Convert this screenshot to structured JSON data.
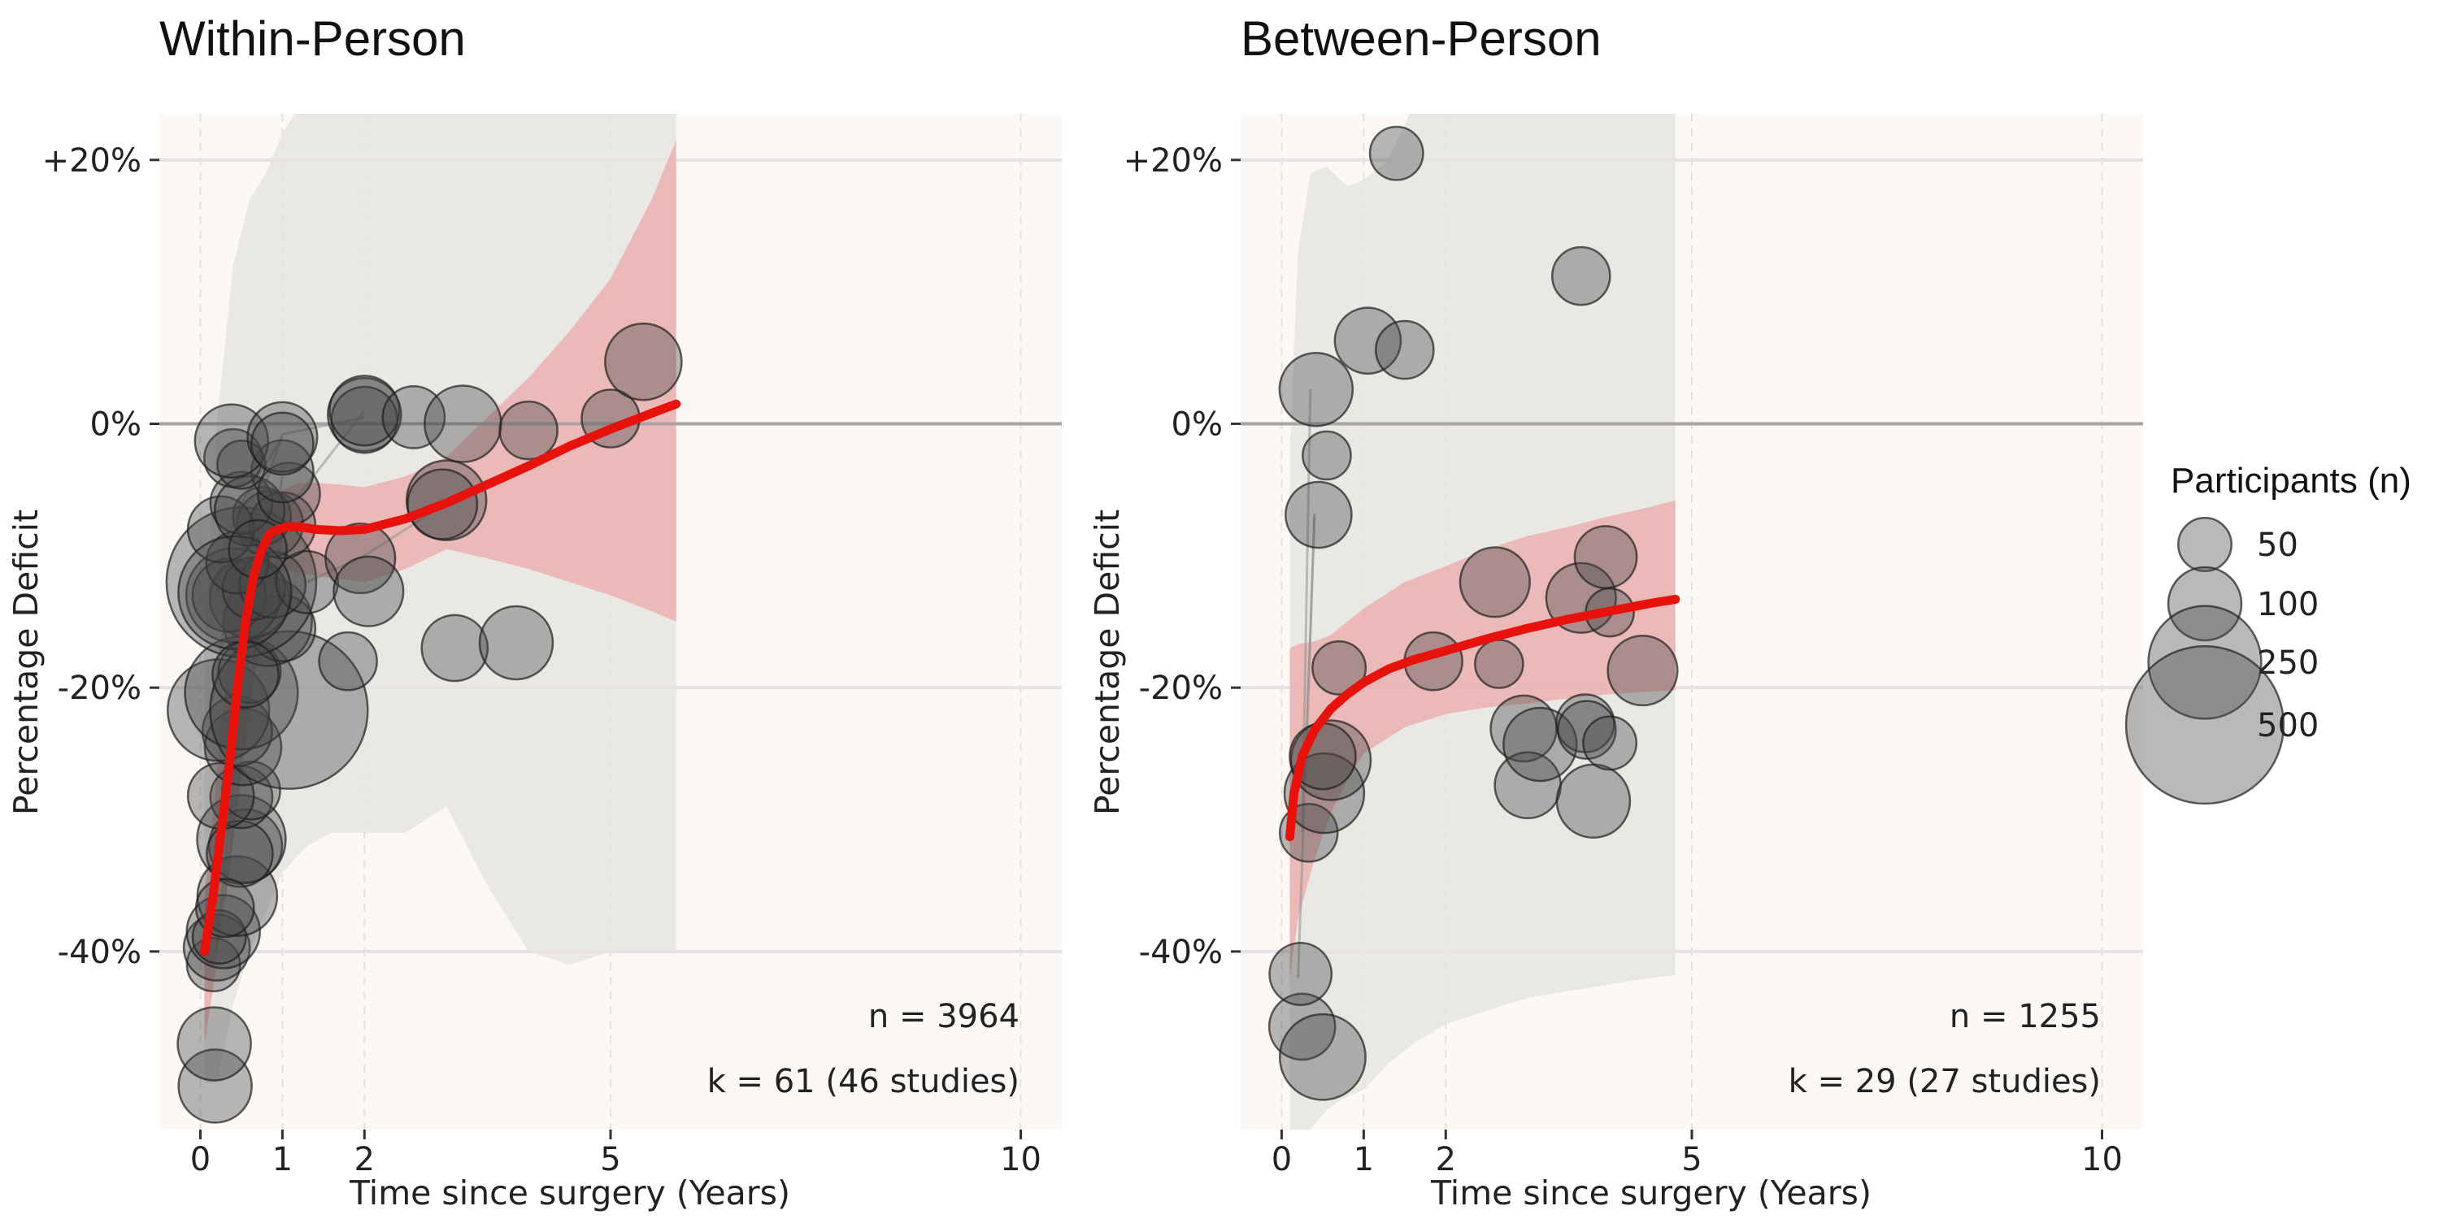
{
  "chart_data": [
    {
      "type": "scatter",
      "title": "Within-Person",
      "xlabel": "Time since surgery (Years)",
      "ylabel": "Percentage Deficit",
      "xlim": [
        -0.5,
        10.5
      ],
      "ylim": [
        -53.5,
        23.5
      ],
      "x_ticks": [
        0,
        1,
        2,
        5,
        10
      ],
      "y_ticks": [
        20,
        0,
        -20,
        -40
      ],
      "y_tick_labels": [
        "+20%",
        "0%",
        "-20%",
        "-40%"
      ],
      "reference_line_y": 0,
      "annotations": [
        "n = 3964",
        "k = 61 (46 studies)"
      ],
      "fit_line": {
        "color": "#e8120c",
        "x": [
          0.05,
          0.15,
          0.25,
          0.35,
          0.45,
          0.55,
          0.65,
          0.75,
          0.85,
          0.95,
          1.05,
          1.2,
          1.4,
          1.7,
          2.0,
          2.5,
          3.0,
          3.5,
          4.0,
          4.5,
          5.0,
          5.5,
          5.8
        ],
        "y": [
          -40,
          -36,
          -31,
          -26,
          -20,
          -15,
          -11.5,
          -9.5,
          -8.3,
          -8.0,
          -7.8,
          -7.8,
          -8.0,
          -8.1,
          -8.0,
          -7.2,
          -6.0,
          -4.6,
          -3.2,
          -1.7,
          -0.4,
          0.8,
          1.5
        ]
      },
      "ci_band": {
        "color": "#eb9f9f",
        "x": [
          0.05,
          0.15,
          0.25,
          0.35,
          0.5,
          0.7,
          0.9,
          1.0,
          1.2,
          1.5,
          2.0,
          2.5,
          3.0,
          3.5,
          4.0,
          4.5,
          5.0,
          5.5,
          5.8
        ],
        "upper": [
          -36,
          -30,
          -23,
          -17,
          -11,
          -7.3,
          -5.5,
          -5.0,
          -4.5,
          -4.5,
          -4.8,
          -4.0,
          -2.5,
          0.5,
          3.5,
          7.0,
          11.0,
          17.0,
          21.5
        ],
        "lower": [
          -47,
          -43,
          -38,
          -34,
          -27,
          -17,
          -12,
          -11,
          -11.3,
          -11.6,
          -12.0,
          -11.0,
          -9.5,
          -10.2,
          -11.0,
          -12.0,
          -13.0,
          -14.2,
          -15.0
        ]
      },
      "pred_band": {
        "color": "#e6e3e1",
        "x": [
          0.05,
          0.2,
          0.4,
          0.6,
          0.8,
          1.0,
          1.3,
          1.6,
          2.0,
          2.5,
          3.0,
          3.5,
          4.0,
          4.5,
          5.0,
          5.5,
          5.8
        ],
        "upper": [
          -17,
          0,
          12,
          17,
          19,
          22,
          25,
          27,
          28,
          29,
          30,
          30,
          30,
          30,
          30,
          30,
          30
        ],
        "lower": [
          -50,
          -50,
          -44,
          -40,
          -37,
          -34,
          -32,
          -31,
          -31,
          -31,
          -29,
          -35,
          -40,
          -41,
          -40,
          -40,
          -40
        ]
      },
      "connector_paths": [
        [
          [
            0.2,
            -13
          ],
          [
            0.3,
            -9
          ],
          [
            0.5,
            -6
          ],
          [
            0.8,
            -3
          ],
          [
            1.0,
            -1
          ]
        ],
        [
          [
            0.15,
            -21
          ],
          [
            0.35,
            -13
          ],
          [
            0.6,
            -8
          ],
          [
            1.0,
            -0.8
          ],
          [
            2.0,
            0.5
          ]
        ],
        [
          [
            0.35,
            -31
          ],
          [
            0.5,
            -22
          ],
          [
            0.7,
            -12
          ],
          [
            1.0,
            -7
          ],
          [
            2.0,
            1.0
          ]
        ],
        [
          [
            0.25,
            -28
          ],
          [
            0.5,
            -18
          ],
          [
            0.8,
            -11
          ],
          [
            1.0,
            -8
          ]
        ],
        [
          [
            0.3,
            -36
          ],
          [
            0.5,
            -25
          ],
          [
            0.7,
            -15
          ],
          [
            1.0,
            -4
          ]
        ],
        [
          [
            0.2,
            -40
          ],
          [
            0.45,
            -24
          ],
          [
            0.85,
            -14
          ],
          [
            1.0,
            -8
          ]
        ],
        [
          [
            1.3,
            -12
          ],
          [
            2.0,
            -10
          ],
          [
            3.0,
            -6
          ]
        ]
      ],
      "points": [
        {
          "x": 0.18,
          "y": -50.2,
          "n": 100
        },
        {
          "x": 0.17,
          "y": -47.0,
          "n": 100
        },
        {
          "x": 0.16,
          "y": -41.0,
          "n": 50
        },
        {
          "x": 0.2,
          "y": -39.7,
          "n": 80
        },
        {
          "x": 0.28,
          "y": -38.5,
          "n": 100
        },
        {
          "x": 0.23,
          "y": -38.9,
          "n": 50
        },
        {
          "x": 0.45,
          "y": -35.8,
          "n": 120
        },
        {
          "x": 0.55,
          "y": -32.0,
          "n": 100
        },
        {
          "x": 0.5,
          "y": -31.5,
          "n": 150
        },
        {
          "x": 0.48,
          "y": -32.6,
          "n": 80
        },
        {
          "x": 0.5,
          "y": -28.3,
          "n": 70
        },
        {
          "x": 0.62,
          "y": -27.8,
          "n": 60
        },
        {
          "x": 0.25,
          "y": -28.2,
          "n": 80
        },
        {
          "x": 0.52,
          "y": -24.5,
          "n": 110
        },
        {
          "x": 0.45,
          "y": -23.3,
          "n": 90
        },
        {
          "x": 0.22,
          "y": -21.7,
          "n": 200
        },
        {
          "x": 0.5,
          "y": -20.4,
          "n": 250
        },
        {
          "x": 0.6,
          "y": -18.8,
          "n": 70
        },
        {
          "x": 1.08,
          "y": -21.7,
          "n": 500
        },
        {
          "x": 0.82,
          "y": -15.0,
          "n": 150
        },
        {
          "x": 1.0,
          "y": -15.5,
          "n": 80
        },
        {
          "x": 0.6,
          "y": -13.2,
          "n": 120
        },
        {
          "x": 0.4,
          "y": -13.0,
          "n": 170
        },
        {
          "x": 0.35,
          "y": -13.0,
          "n": 100
        },
        {
          "x": 0.5,
          "y": -12.0,
          "n": 450
        },
        {
          "x": 0.65,
          "y": -12.5,
          "n": 70
        },
        {
          "x": 0.88,
          "y": -12.2,
          "n": 80
        },
        {
          "x": 1.3,
          "y": -12.0,
          "n": 70
        },
        {
          "x": 0.45,
          "y": -10.5,
          "n": 70
        },
        {
          "x": 0.85,
          "y": -7.6,
          "n": 80
        },
        {
          "x": 0.75,
          "y": -7.0,
          "n": 60
        },
        {
          "x": 1.0,
          "y": -7.7,
          "n": 80
        },
        {
          "x": 0.25,
          "y": -8.0,
          "n": 80
        },
        {
          "x": 0.5,
          "y": -6.0,
          "n": 70
        },
        {
          "x": 0.6,
          "y": -6.6,
          "n": 90
        },
        {
          "x": 1.08,
          "y": -5.3,
          "n": 70
        },
        {
          "x": 1.0,
          "y": -3.6,
          "n": 70
        },
        {
          "x": 0.4,
          "y": -2.6,
          "n": 60
        },
        {
          "x": 0.5,
          "y": -3.1,
          "n": 40
        },
        {
          "x": 0.38,
          "y": -1.3,
          "n": 100
        },
        {
          "x": 1.0,
          "y": -1.0,
          "n": 90
        },
        {
          "x": 1.0,
          "y": -1.5,
          "n": 70
        },
        {
          "x": 2.0,
          "y": 0.7,
          "n": 100
        },
        {
          "x": 2.0,
          "y": 0.3,
          "n": 80
        },
        {
          "x": 2.0,
          "y": 1.0,
          "n": 90
        },
        {
          "x": 2.6,
          "y": 0.5,
          "n": 70
        },
        {
          "x": 3.2,
          "y": 0.0,
          "n": 110
        },
        {
          "x": 3.0,
          "y": -5.8,
          "n": 120
        },
        {
          "x": 2.95,
          "y": -6.1,
          "n": 90
        },
        {
          "x": 1.95,
          "y": -10.2,
          "n": 90
        },
        {
          "x": 2.05,
          "y": -12.7,
          "n": 90
        },
        {
          "x": 1.8,
          "y": -18.0,
          "n": 60
        },
        {
          "x": 3.1,
          "y": -17.0,
          "n": 80
        },
        {
          "x": 3.85,
          "y": -16.6,
          "n": 100
        },
        {
          "x": 4.0,
          "y": -0.5,
          "n": 60
        },
        {
          "x": 5.0,
          "y": 0.4,
          "n": 60
        },
        {
          "x": 5.4,
          "y": 4.7,
          "n": 110
        },
        {
          "x": 0.42,
          "y": -12.8,
          "n": 250
        },
        {
          "x": 0.55,
          "y": -19.0,
          "n": 80
        },
        {
          "x": 0.3,
          "y": -36.7,
          "n": 60
        },
        {
          "x": 0.7,
          "y": -9.5,
          "n": 60
        }
      ]
    },
    {
      "type": "scatter",
      "title": "Between-Person",
      "xlabel": "Time since surgery (Years)",
      "ylabel": "Percentage Deficit",
      "xlim": [
        -0.5,
        10.5
      ],
      "ylim": [
        -53.5,
        23.5
      ],
      "x_ticks": [
        0,
        1,
        2,
        5,
        10
      ],
      "y_ticks": [
        20,
        0,
        -20,
        -40
      ],
      "y_tick_labels": [
        "+20%",
        "0%",
        "-20%",
        "-40%"
      ],
      "reference_line_y": 0,
      "annotations": [
        "n = 1255",
        "k = 29 (27 studies)"
      ],
      "fit_line": {
        "color": "#e8120c",
        "x": [
          0.1,
          0.15,
          0.25,
          0.4,
          0.6,
          0.8,
          1.0,
          1.3,
          1.6,
          2.0,
          2.5,
          3.0,
          3.5,
          4.0,
          4.5,
          4.8
        ],
        "y": [
          -31.3,
          -28.0,
          -25.2,
          -23.2,
          -21.6,
          -20.5,
          -19.6,
          -18.6,
          -17.9,
          -17.2,
          -16.3,
          -15.5,
          -14.8,
          -14.2,
          -13.6,
          -13.3
        ]
      },
      "ci_band": {
        "color": "#eb9f9f",
        "x": [
          0.1,
          0.2,
          0.4,
          0.6,
          0.8,
          1.0,
          1.5,
          2.0,
          2.5,
          3.0,
          3.5,
          4.0,
          4.5,
          4.8
        ],
        "upper": [
          -17.0,
          -16.7,
          -16.5,
          -16.0,
          -15.0,
          -14.0,
          -12.0,
          -10.8,
          -9.5,
          -8.5,
          -7.8,
          -7.0,
          -6.3,
          -5.8
        ],
        "lower": [
          -42.0,
          -37.5,
          -33.0,
          -29.5,
          -27.0,
          -25.0,
          -23.0,
          -22.0,
          -21.5,
          -21.2,
          -20.8,
          -20.5,
          -20.3,
          -20.2
        ]
      },
      "pred_band": {
        "color": "#e6e3e1",
        "x": [
          0.1,
          0.2,
          0.35,
          0.55,
          0.8,
          1.0,
          1.3,
          1.6,
          2.0,
          2.5,
          3.0,
          3.5,
          4.0,
          4.5,
          4.8
        ],
        "upper": [
          -2.0,
          13.0,
          19.0,
          19.5,
          18.0,
          18.5,
          20.0,
          24.0,
          27.0,
          30.0,
          30.0,
          30.0,
          30.0,
          30.0,
          30.0
        ],
        "lower": [
          -53.5,
          -53.5,
          -53.5,
          -52.0,
          -51.0,
          -50.5,
          -48.5,
          -47.0,
          -45.5,
          -44.5,
          -43.5,
          -43.0,
          -42.5,
          -42.0,
          -41.8
        ]
      },
      "connector_paths": [
        [
          [
            0.25,
            -31
          ],
          [
            0.35,
            2.6
          ]
        ],
        [
          [
            0.2,
            -42
          ],
          [
            0.4,
            -7
          ]
        ],
        [
          [
            0.3,
            -25
          ],
          [
            0.4,
            -6.8
          ]
        ]
      ],
      "points": [
        {
          "x": 0.25,
          "y": -45.7,
          "n": 80
        },
        {
          "x": 0.5,
          "y": -48.0,
          "n": 140
        },
        {
          "x": 0.23,
          "y": -41.7,
          "n": 70
        },
        {
          "x": 0.33,
          "y": -31.0,
          "n": 60
        },
        {
          "x": 0.52,
          "y": -28.0,
          "n": 120
        },
        {
          "x": 0.6,
          "y": -25.5,
          "n": 120
        },
        {
          "x": 0.5,
          "y": -25.2,
          "n": 80
        },
        {
          "x": 0.7,
          "y": -18.5,
          "n": 50
        },
        {
          "x": 0.42,
          "y": 2.6,
          "n": 100
        },
        {
          "x": 0.45,
          "y": -6.9,
          "n": 80
        },
        {
          "x": 0.55,
          "y": -2.4,
          "n": 40
        },
        {
          "x": 1.05,
          "y": 6.3,
          "n": 80
        },
        {
          "x": 1.5,
          "y": 5.6,
          "n": 60
        },
        {
          "x": 1.4,
          "y": 20.5,
          "n": 50
        },
        {
          "x": 1.85,
          "y": -18.0,
          "n": 60
        },
        {
          "x": 2.6,
          "y": -12.0,
          "n": 90
        },
        {
          "x": 2.65,
          "y": -18.2,
          "n": 40
        },
        {
          "x": 2.95,
          "y": -23.1,
          "n": 80
        },
        {
          "x": 3.0,
          "y": -27.4,
          "n": 80
        },
        {
          "x": 3.15,
          "y": -24.3,
          "n": 100
        },
        {
          "x": 3.65,
          "y": 11.2,
          "n": 60
        },
        {
          "x": 3.65,
          "y": -13.2,
          "n": 90
        },
        {
          "x": 3.7,
          "y": -22.7,
          "n": 60
        },
        {
          "x": 3.72,
          "y": -23.2,
          "n": 60
        },
        {
          "x": 3.8,
          "y": -28.6,
          "n": 100
        },
        {
          "x": 3.95,
          "y": -10.1,
          "n": 70
        },
        {
          "x": 4.0,
          "y": -14.3,
          "n": 40
        },
        {
          "x": 4.0,
          "y": -24.2,
          "n": 50
        },
        {
          "x": 4.4,
          "y": -18.7,
          "n": 90
        }
      ]
    }
  ],
  "legend": {
    "title": "Participants (n)",
    "entries": [
      {
        "label": "50",
        "n": 50
      },
      {
        "label": "100",
        "n": 100
      },
      {
        "label": "250",
        "n": 250
      },
      {
        "label": "500",
        "n": 500
      }
    ],
    "placement": "right"
  }
}
